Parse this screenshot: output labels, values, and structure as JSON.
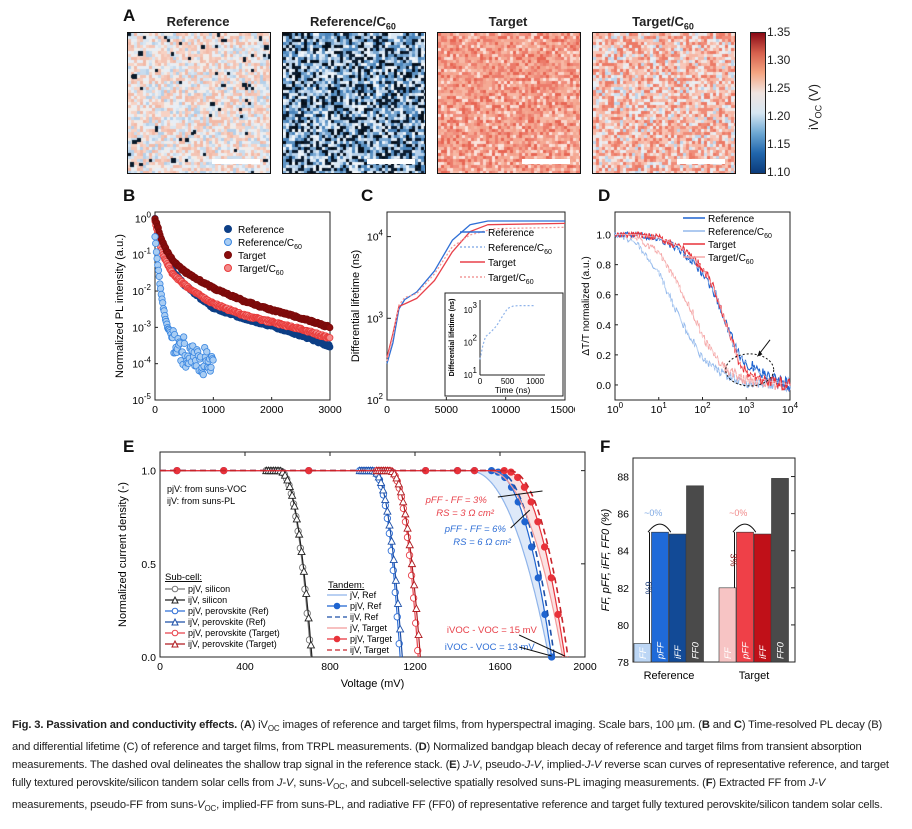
{
  "panel_labels": {
    "A": "A",
    "B": "B",
    "C": "C",
    "D": "D",
    "E": "E",
    "F": "F"
  },
  "panelA": {
    "images": [
      {
        "title": "Reference",
        "subscript": "",
        "style": "reference"
      },
      {
        "title": "Reference/C",
        "subscript": "60",
        "style": "reference_c60"
      },
      {
        "title": "Target",
        "subscript": "",
        "style": "target"
      },
      {
        "title": "Target/C",
        "subscript": "60",
        "style": "target_c60"
      }
    ],
    "colorbar": {
      "label": "iV",
      "label_sub": "OC",
      "label_unit": "(V)",
      "ticks": [
        "1.35",
        "1.30",
        "1.25",
        "1.20",
        "1.15",
        "1.10"
      ],
      "min": 1.1,
      "max": 1.35,
      "colors": [
        "#0b3b7a",
        "#2166ac",
        "#6ea8d3",
        "#d6e6f2",
        "#f0e4e0",
        "#f4a582",
        "#d6604d",
        "#8b0a16"
      ]
    },
    "scale_bar": "100 µm"
  },
  "chart_data": [
    {
      "id": "B",
      "type": "scatter",
      "xlabel": "Time (ns)",
      "ylabel": "Normalized PL intensity (a.u.)",
      "xlim": [
        0,
        3000
      ],
      "ylim": [
        1e-05,
        1.5
      ],
      "yscale": "log",
      "xticks": [
        "0",
        "1000",
        "2000",
        "3000"
      ],
      "yticks": [
        "10^0",
        "10^-1",
        "10^-2",
        "10^-3",
        "10^-4",
        "10^-5"
      ],
      "legend_position": "top-right",
      "series": [
        {
          "name": "Reference",
          "color": "#0d3f86",
          "fill": "#0d3f86",
          "x": [
            0,
            100,
            200,
            300,
            500,
            800,
            1000,
            1500,
            2000,
            2500,
            3000
          ],
          "y": [
            1,
            0.2,
            0.07,
            0.035,
            0.015,
            0.006,
            0.0035,
            0.0018,
            0.0011,
            0.0006,
            0.0003
          ]
        },
        {
          "name": "Reference/C60",
          "sub": "60",
          "color": "#3a86e0",
          "fill": "#a9cdf3",
          "x": [
            0,
            50,
            100,
            150,
            200,
            300,
            400,
            600,
            800,
            1000
          ],
          "y": [
            0.3,
            0.05,
            0.01,
            0.003,
            0.0012,
            0.0005,
            0.0003,
            0.00015,
            0.0001,
            0.00015
          ]
        },
        {
          "name": "Target",
          "color": "#7a0b0b",
          "fill": "#8b0d0d",
          "x": [
            0,
            100,
            200,
            300,
            500,
            800,
            1000,
            1500,
            2000,
            2500,
            3000
          ],
          "y": [
            1,
            0.3,
            0.13,
            0.07,
            0.035,
            0.018,
            0.012,
            0.0055,
            0.003,
            0.0018,
            0.001
          ]
        },
        {
          "name": "Target/C60",
          "sub": "60",
          "color": "#e83b3b",
          "fill": "#f48a8a",
          "x": [
            0,
            100,
            200,
            300,
            500,
            800,
            1000,
            1500,
            2000,
            2500,
            3000
          ],
          "y": [
            0.8,
            0.15,
            0.06,
            0.03,
            0.015,
            0.007,
            0.0045,
            0.0022,
            0.0014,
            0.0009,
            0.0005
          ]
        }
      ]
    },
    {
      "id": "C",
      "type": "line",
      "xlabel": "Time (ns)",
      "ylabel": "Differential lifetime (ns)",
      "xlim": [
        0,
        15000
      ],
      "ylim": [
        100,
        20000
      ],
      "yscale": "log",
      "xticks": [
        "0",
        "5000",
        "10000",
        "15000"
      ],
      "yticks": [
        "10^4",
        "10^3",
        "10^2"
      ],
      "legend_position": "top-right",
      "series": [
        {
          "name": "Reference",
          "color": "#2f6fd6",
          "dash": "solid",
          "x": [
            0,
            500,
            1000,
            1500,
            2500,
            4000,
            5500,
            7000,
            8500,
            15000
          ],
          "y": [
            280,
            500,
            1300,
            1700,
            2100,
            3800,
            9000,
            14000,
            15500,
            15500
          ]
        },
        {
          "name": "Reference/C60",
          "sub": "60",
          "color": "#8fb4ea",
          "dash": "dotted",
          "x": [],
          "y": []
        },
        {
          "name": "Target",
          "color": "#e8414a",
          "dash": "solid",
          "x": [
            0,
            500,
            1000,
            1500,
            2500,
            4000,
            5500,
            7000,
            8500,
            15000
          ],
          "y": [
            330,
            650,
            1400,
            1500,
            1750,
            2900,
            6500,
            11500,
            14000,
            14500
          ]
        },
        {
          "name": "Target/C60",
          "sub": "60",
          "color": "#f29a9a",
          "dash": "dotted",
          "x": [
            0,
            500,
            1000,
            1500,
            2500,
            4000,
            5500,
            7000,
            9000,
            15000
          ],
          "y": [
            300,
            600,
            1450,
            1800,
            2000,
            3500,
            7500,
            10500,
            12500,
            13000
          ]
        }
      ],
      "inset": {
        "xlabel": "Time (ns)",
        "ylabel": "Differential lifetime (ns)",
        "xlim": [
          0,
          1000
        ],
        "ylim": [
          10,
          2000
        ],
        "yscale": "log",
        "xticks": [
          "0",
          "500",
          "1000"
        ],
        "yticks": [
          "10^3",
          "10^2",
          "10^1"
        ],
        "series": [
          {
            "name": "Reference/C60",
            "color": "#8fb4ea",
            "dash": "dotted",
            "x": [
              0,
              50,
              100,
              200,
              300,
              400,
              500,
              600,
              700,
              1000
            ],
            "y": [
              30,
              80,
              150,
              210,
              320,
              600,
              1100,
              1300,
              1350,
              1350
            ]
          }
        ]
      }
    },
    {
      "id": "D",
      "type": "line",
      "xlabel": "Time (ns)",
      "ylabel": "ΔT/T normalized (a.u.)",
      "xlim": [
        1,
        10000
      ],
      "ylim": [
        -0.1,
        1.15
      ],
      "xscale": "log",
      "xticks": [
        "10^0",
        "10^1",
        "10^2",
        "10^3",
        "10^4"
      ],
      "yticks": [
        "1.0",
        "0.8",
        "0.6",
        "0.4",
        "0.2",
        "0.0"
      ],
      "legend_position": "top-right",
      "annotation": "dashed oval with arrow around shallow trap signal near 10^3 ns",
      "series": [
        {
          "name": "Reference",
          "color": "#1f64d0",
          "x": [
            1,
            3,
            10,
            30,
            100,
            200,
            400,
            700,
            1000,
            3000,
            10000
          ],
          "y": [
            1.0,
            1.0,
            0.97,
            0.9,
            0.75,
            0.6,
            0.35,
            0.2,
            0.15,
            0.05,
            0.0
          ]
        },
        {
          "name": "Reference/C60",
          "sub": "60",
          "color": "#93b9ec",
          "x": [
            1,
            3,
            10,
            20,
            40,
            100,
            300,
            1000,
            10000
          ],
          "y": [
            1.0,
            0.95,
            0.75,
            0.55,
            0.38,
            0.18,
            0.07,
            0.02,
            0.0
          ]
        },
        {
          "name": "Target",
          "color": "#e8323a",
          "x": [
            1,
            3,
            10,
            30,
            100,
            200,
            400,
            700,
            1000,
            3000,
            10000
          ],
          "y": [
            1.0,
            1.0,
            0.98,
            0.92,
            0.78,
            0.62,
            0.35,
            0.15,
            0.08,
            0.03,
            0.0
          ]
        },
        {
          "name": "Target/C60",
          "sub": "60",
          "color": "#f5a8a8",
          "x": [
            1,
            3,
            10,
            30,
            60,
            100,
            300,
            1000,
            10000
          ],
          "y": [
            1.0,
            0.98,
            0.88,
            0.65,
            0.48,
            0.32,
            0.12,
            0.03,
            0.0
          ]
        }
      ]
    },
    {
      "id": "E",
      "type": "line",
      "xlabel": "Voltage (mV)",
      "ylabel": "Normalized current density (-)",
      "xlim": [
        0,
        2000
      ],
      "ylim": [
        0,
        1.1
      ],
      "xticks": [
        "0",
        "400",
        "800",
        "1200",
        "1600",
        "2000"
      ],
      "yticks": [
        "1.0",
        "0.5",
        "0.0"
      ],
      "notes": [
        "pjV: from suns-VOC",
        "ijV: from suns-PL"
      ],
      "annotations": [
        {
          "text": "pFF - FF = 3%",
          "color": "#e8414a"
        },
        {
          "text": "RS = 3 Ω cm²",
          "color": "#e8414a"
        },
        {
          "text": "pFF - FF = 6%",
          "color": "#2f6fd6"
        },
        {
          "text": "RS = 6 Ω cm²",
          "color": "#2f6fd6"
        },
        {
          "text": "iVOC - VOC = 15 mV",
          "color": "#e8414a"
        },
        {
          "text": "iVOC - VOC = 13 mV",
          "color": "#2f6fd6"
        }
      ],
      "legend_subcell_title": "Sub-cell:",
      "legend_tandem_title": "Tandem:",
      "series": [
        {
          "name": "pjV, silicon",
          "group": "subcell",
          "color": "#777",
          "marker": "circle-open",
          "knee": 560,
          "voc": 710
        },
        {
          "name": "ijV, silicon",
          "group": "subcell",
          "color": "#222",
          "marker": "triangle-open",
          "knee": 560,
          "voc": 715
        },
        {
          "name": "pjV, perovskite (Ref)",
          "group": "subcell",
          "color": "#2f6fd6",
          "marker": "circle-open",
          "knee": 1000,
          "voc": 1130
        },
        {
          "name": "ijV, perovskite (Ref)",
          "group": "subcell",
          "color": "#1c4fa8",
          "marker": "triangle-open",
          "knee": 1000,
          "voc": 1140
        },
        {
          "name": "pjV, perovskite (Target)",
          "group": "subcell",
          "color": "#e8414a",
          "marker": "circle-open",
          "knee": 1080,
          "voc": 1215
        },
        {
          "name": "ijV, perovskite (Target)",
          "group": "subcell",
          "color": "#b01b20",
          "marker": "triangle-open",
          "knee": 1080,
          "voc": 1225
        },
        {
          "name": "jV, Ref",
          "group": "tandem",
          "color": "#8fb4ea",
          "dash": "solid",
          "knee": 1450,
          "voc": 1830
        },
        {
          "name": "pjV, Ref",
          "group": "tandem",
          "color": "#1f64d0",
          "marker": "circle-filled",
          "knee": 1560,
          "voc": 1843
        },
        {
          "name": "ijV, Ref",
          "group": "tandem",
          "color": "#1c4fa8",
          "dash": "dashed",
          "knee": 1580,
          "voc": 1856
        },
        {
          "name": "jV, Target",
          "group": "tandem",
          "color": "#f29a9a",
          "dash": "solid",
          "knee": 1540,
          "voc": 1895
        },
        {
          "name": "pjV, Target",
          "group": "tandem",
          "color": "#e8323a",
          "marker": "circle-filled",
          "knee": 1620,
          "voc": 1905
        },
        {
          "name": "ijV, Target",
          "group": "tandem",
          "color": "#c8242a",
          "dash": "dashed",
          "knee": 1640,
          "voc": 1920
        }
      ]
    },
    {
      "id": "F",
      "type": "bar",
      "ylabel": "FF, pFF, iFF, FF0 (%)",
      "ylim": [
        78,
        89
      ],
      "yticks": [
        "88",
        "86",
        "84",
        "82",
        "80",
        "78"
      ],
      "categories": [
        "Reference",
        "Target"
      ],
      "series": [
        {
          "group": "Reference",
          "bars": [
            {
              "label": "FF",
              "value": 79.0,
              "color": "#bcd6f5"
            },
            {
              "label": "pFF",
              "value": 85.0,
              "color": "#1f6ad8"
            },
            {
              "label": "iFF",
              "value": 84.9,
              "color": "#124a96"
            },
            {
              "label": "FF0",
              "value": 87.5,
              "color": "#4a4a4a"
            }
          ],
          "gap_label": "6%",
          "gap_color": "#1c3d7a",
          "arrow_label": "~0%",
          "arrow_color": "#7fa9e3"
        },
        {
          "group": "Target",
          "bars": [
            {
              "label": "FF",
              "value": 82.0,
              "color": "#f7c4c4"
            },
            {
              "label": "pFF",
              "value": 85.0,
              "color": "#ef4048"
            },
            {
              "label": "iFF",
              "value": 84.9,
              "color": "#c01018"
            },
            {
              "label": "FF0",
              "value": 87.9,
              "color": "#4a4a4a"
            }
          ],
          "gap_label": "3%",
          "gap_color": "#8b1a1a",
          "arrow_label": "~0%",
          "arrow_color": "#f08a8a"
        }
      ]
    }
  ],
  "caption": {
    "fig_label": "Fig. 3.",
    "fig_title": "Passivation and conductivity effects.",
    "parts": [
      {
        "k": "A",
        "t": " iV"
      },
      {
        "sub": "OC"
      },
      {
        "t": " images of reference and target films, from hyperspectral imaging. Scale bars, 100 µm. ("
      },
      {
        "k": "B"
      },
      {
        "t": " and "
      },
      {
        "k": "C"
      },
      {
        "t": ") Time-resolved PL decay (B) and differential lifetime (C) of reference and target films, from TRPL measurements. ("
      },
      {
        "k": "D"
      },
      {
        "t": ") Normalized bandgap bleach decay of reference and target films from transient absorption measurements. The dashed oval delineates the shallow trap signal in the reference stack. ("
      },
      {
        "k": "E"
      },
      {
        "t": ") "
      },
      {
        "i": "J-V"
      },
      {
        "t": ", pseudo-"
      },
      {
        "i": "J-V"
      },
      {
        "t": ", implied-"
      },
      {
        "i": "J-V"
      },
      {
        "t": " reverse scan curves of representative reference, and target fully textured perovskite/silicon tandem solar cells from "
      },
      {
        "i": "J-V"
      },
      {
        "t": ", suns-"
      },
      {
        "i": "V"
      },
      {
        "isub": "OC"
      },
      {
        "t": ", and subcell-selective spatially resolved suns-PL imaging measurements. ("
      },
      {
        "k": "F"
      },
      {
        "t": ") Extracted FF from "
      },
      {
        "i": "J-V"
      },
      {
        "t": " measurements, pseudo-FF from suns-"
      },
      {
        "i": "V"
      },
      {
        "isub": "OC"
      },
      {
        "t": ", implied-FF from suns-PL, and radiative FF (FF0) of representative reference and target fully textured perovskite/silicon tandem solar cells."
      }
    ]
  }
}
